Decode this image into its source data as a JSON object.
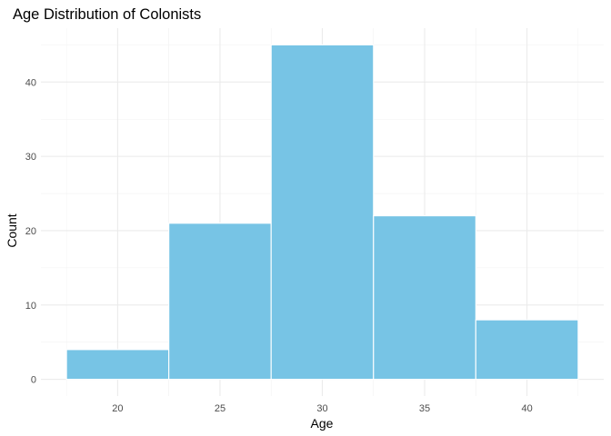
{
  "chart_data": {
    "type": "bar",
    "title": "Age Distribution of Colonists",
    "xlabel": "Age",
    "ylabel": "Count",
    "bin_width": 5,
    "bins": [
      {
        "center": 20,
        "count": 4
      },
      {
        "center": 25,
        "count": 21
      },
      {
        "center": 30,
        "count": 45
      },
      {
        "center": 35,
        "count": 22
      },
      {
        "center": 40,
        "count": 8
      }
    ],
    "x_ticks": [
      20,
      25,
      30,
      35,
      40
    ],
    "y_ticks": [
      0,
      10,
      20,
      30,
      40
    ],
    "xlim": [
      16.25,
      43.75
    ],
    "ylim": [
      -2.25,
      47.25
    ],
    "grid": true,
    "legend": "none",
    "bar_color": "#77c4e5",
    "bar_outline": "#ffffff"
  }
}
